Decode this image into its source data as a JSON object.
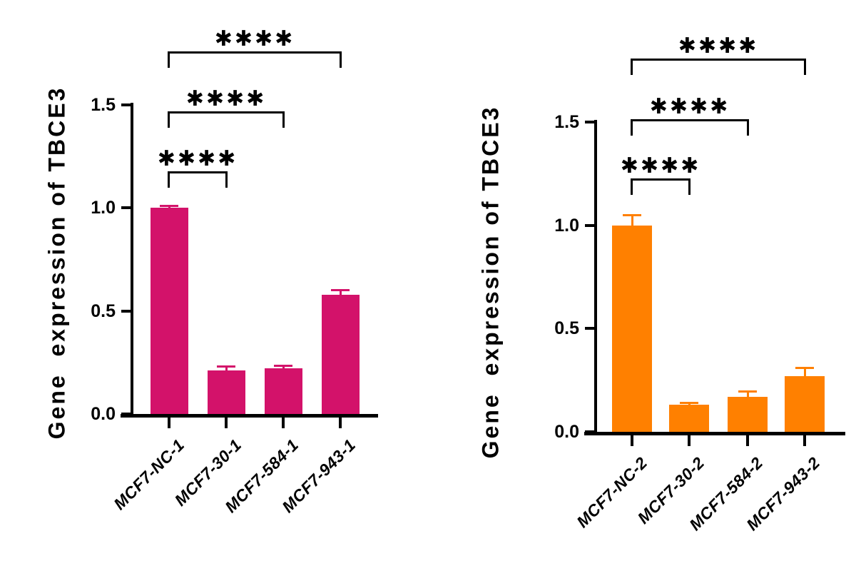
{
  "figure": {
    "background": "#ffffff",
    "text_color": "#000000"
  },
  "chart_data": [
    {
      "type": "bar",
      "title": "",
      "ylabel": "Gene  expression of TBCE3",
      "xlabel": "",
      "ylim": [
        0,
        1.5
      ],
      "yticks": [
        "0.0",
        "0.5",
        "1.0",
        "1.5"
      ],
      "grid": false,
      "legend_position": "none",
      "bar_color": "#d3126a",
      "axis_color": "#000000",
      "categories": [
        "MCF7-NC-1",
        "MCF7-30-1",
        "MCF7-584-1",
        "MCF7-943-1"
      ],
      "values": [
        1.0,
        0.21,
        0.22,
        0.58
      ],
      "errors": [
        0.01,
        0.02,
        0.015,
        0.02
      ],
      "significance": [
        {
          "from": "MCF7-NC-1",
          "to": "MCF7-30-1",
          "label": "****"
        },
        {
          "from": "MCF7-NC-1",
          "to": "MCF7-584-1",
          "label": "****"
        },
        {
          "from": "MCF7-NC-1",
          "to": "MCF7-943-1",
          "label": "****"
        }
      ]
    },
    {
      "type": "bar",
      "title": "",
      "ylabel": "Gene  expression of TBCE3",
      "xlabel": "",
      "ylim": [
        0,
        1.5
      ],
      "yticks": [
        "0.0",
        "0.5",
        "1.0",
        "1.5"
      ],
      "grid": false,
      "legend_position": "none",
      "bar_color": "#ff8000",
      "axis_color": "#000000",
      "categories": [
        "MCF7-NC-2",
        "MCF7-30-2",
        "MCF7-584-2",
        "MCF7-943-2"
      ],
      "values": [
        1.0,
        0.13,
        0.17,
        0.27
      ],
      "errors": [
        0.05,
        0.01,
        0.025,
        0.04
      ],
      "significance": [
        {
          "from": "MCF7-NC-2",
          "to": "MCF7-30-2",
          "label": "****"
        },
        {
          "from": "MCF7-NC-2",
          "to": "MCF7-584-2",
          "label": "****"
        },
        {
          "from": "MCF7-NC-2",
          "to": "MCF7-943-2",
          "label": "****"
        }
      ]
    }
  ]
}
